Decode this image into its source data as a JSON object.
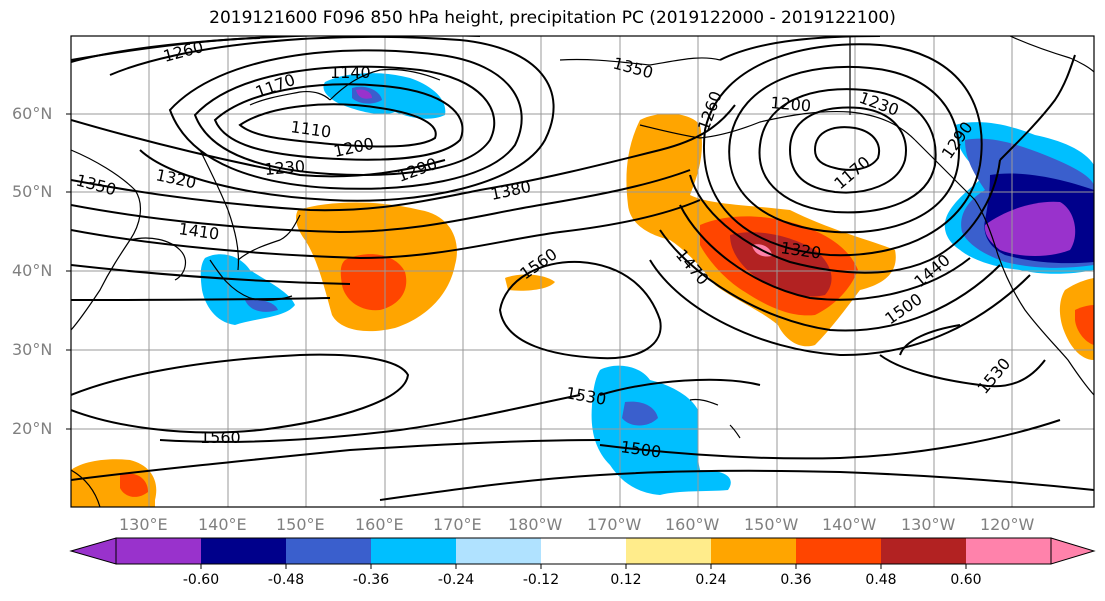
{
  "title": "2019121600 F096 850 hPa height, precipitation PC (2019122000 - 2019122100)",
  "lat_labels": [
    "60°N",
    "50°N",
    "40°N",
    "30°N",
    "20°N"
  ],
  "lon_labels": [
    "130°E",
    "140°E",
    "150°E",
    "160°E",
    "170°E",
    "180°W",
    "170°W",
    "160°W",
    "150°W",
    "140°W",
    "130°W",
    "120°W"
  ],
  "contour_labels": [
    "1260",
    "1170",
    "1140",
    "1110",
    "1230",
    "1200",
    "1290",
    "1320",
    "1350",
    "1380",
    "1410",
    "1560",
    "1470",
    "1320",
    "1350",
    "1260",
    "1200",
    "1230",
    "1170",
    "1290",
    "1440",
    "1500",
    "1530",
    "1530",
    "1500",
    "1560"
  ],
  "colorbar": {
    "labels": [
      "-0.60",
      "-0.48",
      "-0.36",
      "-0.24",
      "-0.12",
      "0.12",
      "0.24",
      "0.36",
      "0.48",
      "0.60"
    ],
    "colors": [
      "#9932cc",
      "#00008b",
      "#3a5fcd",
      "#00bfff",
      "#b0e2ff",
      "#ffffff",
      "#ffec8b",
      "#ffa500",
      "#ff4500",
      "#b22222",
      "#ff82ab"
    ]
  }
}
